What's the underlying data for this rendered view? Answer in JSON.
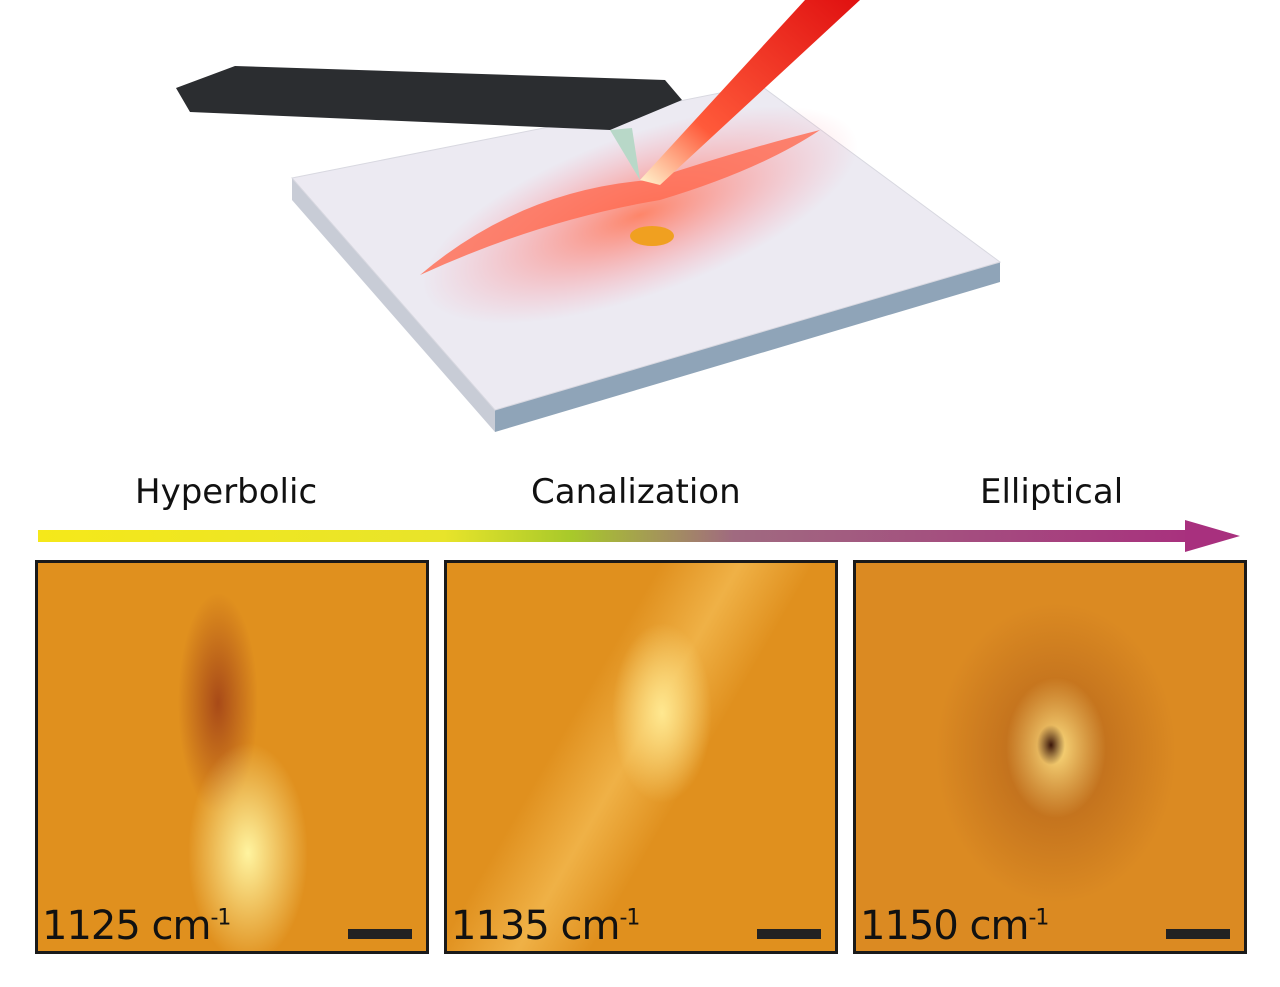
{
  "regimes": {
    "left": "Hyperbolic",
    "middle": "Canalization",
    "right": "Elliptical"
  },
  "arrow_colors": [
    "#f5e81a",
    "#a8c92a",
    "#a06a80",
    "#a8307e"
  ],
  "panels": [
    {
      "value": "1125 cm",
      "exponent": "-1"
    },
    {
      "value": "1135 cm",
      "exponent": "-1"
    },
    {
      "value": "1150 cm",
      "exponent": "-1"
    }
  ]
}
